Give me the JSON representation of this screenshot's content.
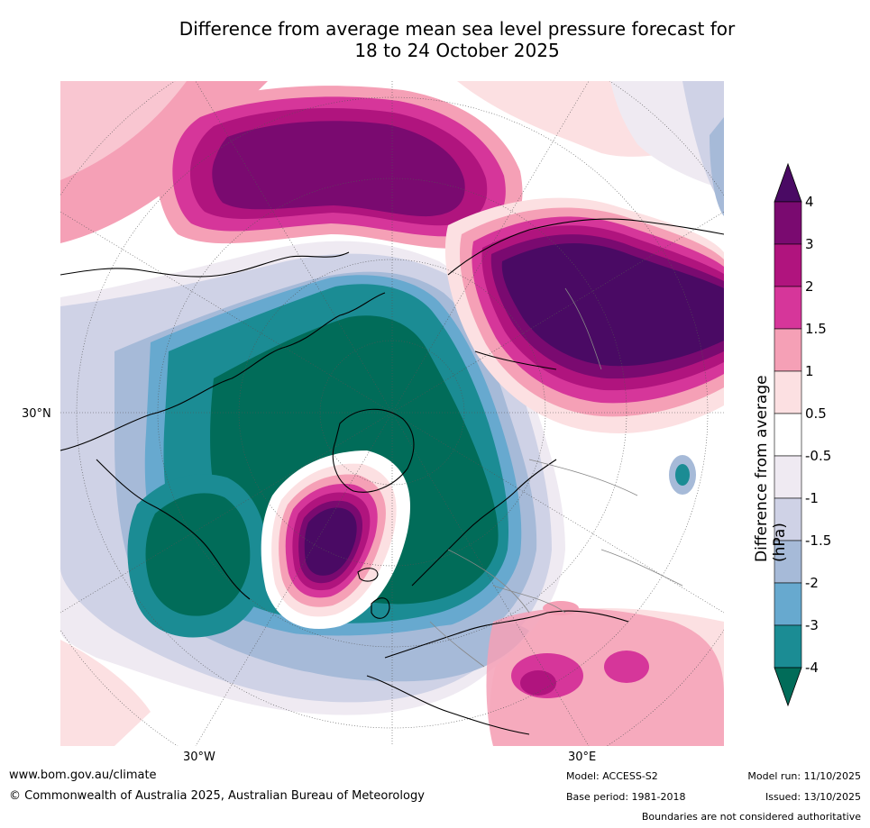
{
  "header": {
    "title_line1": "Difference from average mean sea level pressure forecast for",
    "title_line2": "18 to 24 October 2025"
  },
  "map": {
    "lat_label": "30°N",
    "lon_label_west": "30°W",
    "lon_label_east": "30°E"
  },
  "colorbar": {
    "title": "Difference from average (hPa)",
    "ticks": [
      "4",
      "3",
      "2",
      "1.5",
      "1",
      "0.5",
      "-0.5",
      "-1",
      "-1.5",
      "-2",
      "-3",
      "-4"
    ],
    "colors": {
      "gt4": "#4a0a64",
      "c4_3": "#7a0a70",
      "c3_2": "#b0147e",
      "c2_15": "#d6369a",
      "c15_1": "#f5a0b6",
      "c1_05": "#fce0e2",
      "c05_m05": "#ffffff",
      "cm05_m1": "#efeaf2",
      "cm1_m15": "#cfd2e6",
      "cm15_m2": "#a6bad8",
      "cm2_m3": "#67a9cf",
      "cm3_m4": "#1b8c94",
      "ltm4": "#016c59"
    }
  },
  "footer": {
    "website": "www.bom.gov.au/climate",
    "copyright": "© Commonwealth of Australia 2025, Australian Bureau of Meteorology",
    "model": "Model: ACCESS-S2",
    "base_period": "Base period: 1981-2018",
    "model_run": "Model run: 11/10/2025",
    "issued": "Issued: 13/10/2025",
    "disclaimer": "Boundaries are not considered authoritative"
  }
}
